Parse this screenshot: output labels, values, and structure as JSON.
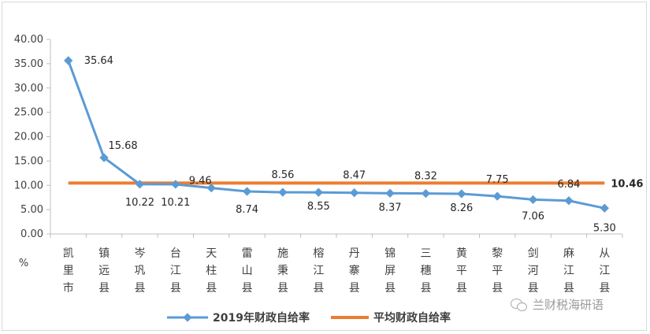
{
  "chart_data": {
    "type": "line",
    "ylabel": "%",
    "ylim": [
      0,
      40
    ],
    "ytick_labels": [
      "0.00",
      "5.00",
      "10.00",
      "15.00",
      "20.00",
      "25.00",
      "30.00",
      "35.00",
      "40.00"
    ],
    "categories": [
      "凯里市",
      "镇远县",
      "岑巩县",
      "台江县",
      "天柱县",
      "雷山县",
      "施秉县",
      "榕江县",
      "丹寨县",
      "锦屏县",
      "三穗县",
      "黄平县",
      "黎平县",
      "剑河县",
      "麻江县",
      "从江县"
    ],
    "series": [
      {
        "name": "2019年财政自给率",
        "color": "#5b9bd5",
        "values": [
          35.64,
          15.68,
          10.22,
          10.21,
          9.46,
          8.74,
          8.56,
          8.55,
          8.47,
          8.37,
          8.32,
          8.26,
          7.75,
          7.06,
          6.84,
          5.3
        ],
        "labels": [
          "35.64",
          "15.68",
          "10.22",
          "10.21",
          "9.46",
          "8.74",
          "8.56",
          "8.55",
          "8.47",
          "8.37",
          "8.32",
          "8.26",
          "7.75",
          "7.06",
          "6.84",
          "5.30"
        ]
      },
      {
        "name": "平均财政自给率",
        "color": "#ed7d31",
        "value": 10.46,
        "label": "10.46"
      }
    ],
    "grid": false,
    "legend_position": "bottom"
  },
  "watermark": {
    "text": "兰财税海研语",
    "icon": "wechat-icon"
  }
}
